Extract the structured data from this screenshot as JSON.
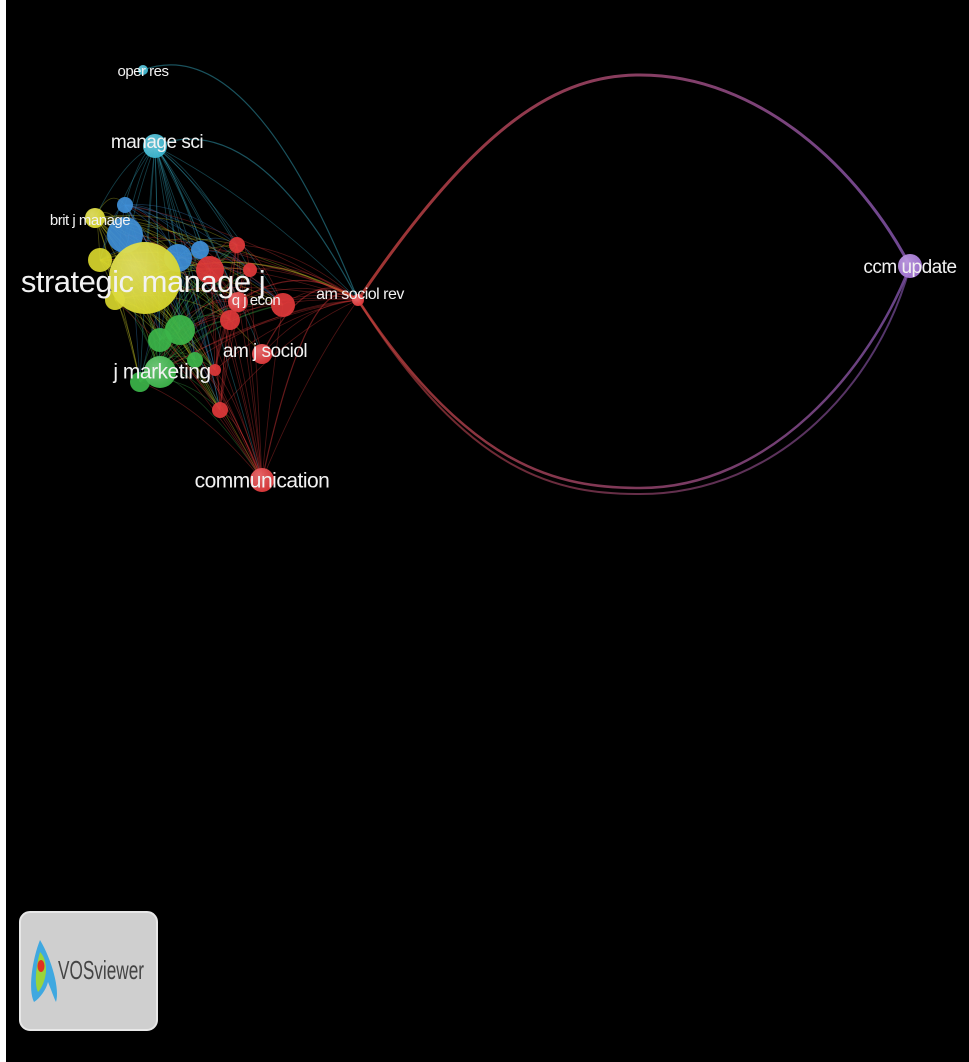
{
  "nodes": [
    {
      "label": "oper res"
    },
    {
      "label": "manage sci"
    },
    {
      "label": "brit j manage"
    },
    {
      "label": "strategic manage j"
    },
    {
      "label": "q j econ"
    },
    {
      "label": "am sociol rev"
    },
    {
      "label": "am j sociol"
    },
    {
      "label": "j marketing"
    },
    {
      "label": "communication"
    },
    {
      "label": "ccm update"
    }
  ],
  "logo": {
    "text": "VOSviewer"
  }
}
